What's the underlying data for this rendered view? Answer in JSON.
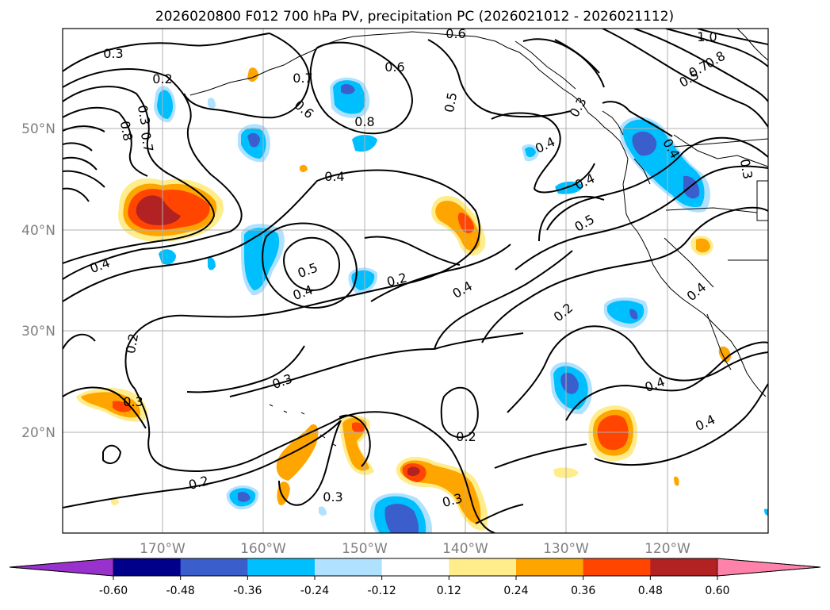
{
  "title": "2026020800 F012 700 hPa PV, precipitation PC (2026021012 - 2026021112)",
  "map": {
    "lat_ticks": [
      "50°N",
      "40°N",
      "30°N",
      "20°N"
    ],
    "lon_ticks": [
      "170°W",
      "160°W",
      "150°W",
      "140°W",
      "130°W",
      "120°W"
    ],
    "grid": true,
    "colors": {
      "land_line": "#000000",
      "grid": "#b0b0b0",
      "axis_label": "#808080"
    }
  },
  "contour_labels": [
    {
      "text": "0.3"
    },
    {
      "text": "0.2"
    },
    {
      "text": "0.3"
    },
    {
      "text": "0.8"
    },
    {
      "text": "0.7"
    },
    {
      "text": "0.7"
    },
    {
      "text": "0.6"
    },
    {
      "text": "0.6"
    },
    {
      "text": "0.8"
    },
    {
      "text": "0.5"
    },
    {
      "text": "0.6"
    },
    {
      "text": "1.0"
    },
    {
      "text": "0.8"
    },
    {
      "text": "0.7"
    },
    {
      "text": "0.5"
    },
    {
      "text": "0.4"
    },
    {
      "text": "0.4"
    },
    {
      "text": "0.4"
    },
    {
      "text": "0.4"
    },
    {
      "text": "0.3"
    },
    {
      "text": "0.4"
    },
    {
      "text": "0.5"
    },
    {
      "text": "0.4"
    },
    {
      "text": "0.5"
    },
    {
      "text": "0.4"
    },
    {
      "text": "0.2"
    },
    {
      "text": "0.4"
    },
    {
      "text": "0.4"
    },
    {
      "text": "0.2"
    },
    {
      "text": "0.2"
    },
    {
      "text": "0.3"
    },
    {
      "text": "0.4"
    },
    {
      "text": "0.3"
    },
    {
      "text": "0.3"
    },
    {
      "text": "0.2"
    },
    {
      "text": "0.2"
    },
    {
      "text": "0.3"
    },
    {
      "text": "0.3"
    }
  ],
  "colorbar": {
    "ticks": [
      "-0.60",
      "-0.48",
      "-0.36",
      "-0.24",
      "-0.12",
      "0.12",
      "0.24",
      "0.36",
      "0.48",
      "0.60"
    ],
    "colors": [
      "#9932cc",
      "#00008b",
      "#3a5fcd",
      "#00bfff",
      "#b0e2ff",
      "#ffffff",
      "#ffec8b",
      "#ffa500",
      "#ff4500",
      "#b22222",
      "#ff82ab"
    ]
  }
}
